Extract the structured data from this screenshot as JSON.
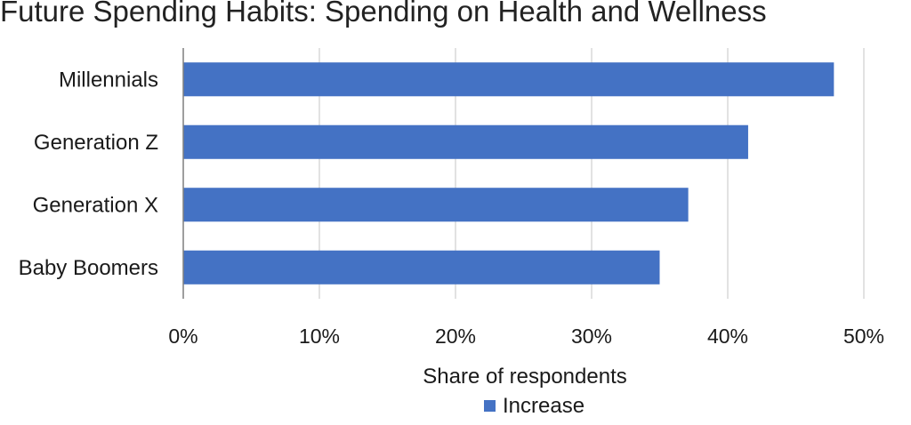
{
  "chart_data": {
    "type": "bar",
    "orientation": "horizontal",
    "title": "Future Spending Habits: Spending on Health and Wellness",
    "categories": [
      "Millennials",
      "Generation Z",
      "Generation X",
      "Baby Boomers"
    ],
    "series": [
      {
        "name": "Increase",
        "color": "#4472c4",
        "values": [
          47.8,
          41.5,
          37.1,
          35.0
        ]
      }
    ],
    "xlabel": "Share of respondents",
    "ylabel": "",
    "xlim": [
      0,
      50
    ],
    "xticks": [
      "0%",
      "10%",
      "20%",
      "30%",
      "40%",
      "50%"
    ],
    "grid": true,
    "legend": "bottom"
  }
}
